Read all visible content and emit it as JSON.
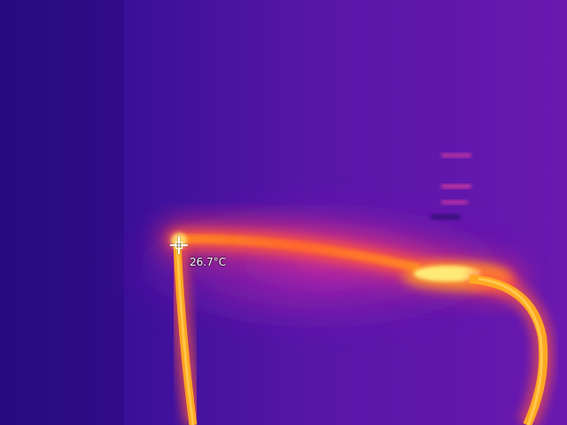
{
  "thermal_image": {
    "spot_temperature": "26.7°C",
    "palette": {
      "cold": "#2a0a8a",
      "cool": "#5a12a8",
      "mid": "#a020b0",
      "warm": "#ff4a40",
      "hot": "#ff9a18",
      "hottest": "#fff27a"
    },
    "crosshair_icon": "crosshair-icon"
  }
}
